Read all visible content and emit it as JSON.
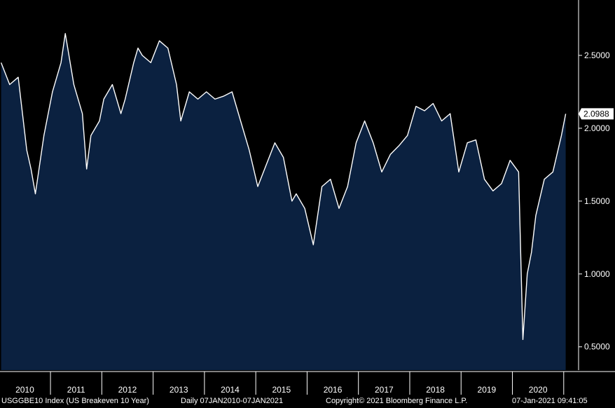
{
  "colors": {
    "background": "#000000",
    "area_fill": "#0b2140",
    "line": "#ffffff",
    "label_box": "#ffffff"
  },
  "chart_data": {
    "type": "area",
    "title": "",
    "xlabel": "",
    "ylabel": "",
    "x_range": [
      "2010-01-07",
      "2021-01-07"
    ],
    "ylim": [
      0.34,
      2.88
    ],
    "grid": false,
    "y_ticks": [
      "2.5000",
      "2.0000",
      "1.5000",
      "1.0000",
      "0.5000"
    ],
    "x_tick_labels": [
      "2010",
      "2011",
      "2012",
      "2013",
      "2014",
      "2015",
      "2016",
      "2017",
      "2018",
      "2019",
      "2020"
    ],
    "last_value": "2.0988",
    "series": [
      {
        "x": [
          "2010-01",
          "2010-03",
          "2010-05",
          "2010-07",
          "2010-08",
          "2010-09",
          "2010-11",
          "2011-01",
          "2011-03",
          "2011-04",
          "2011-06",
          "2011-08",
          "2011-09",
          "2011-10",
          "2011-12",
          "2012-01",
          "2012-03",
          "2012-05",
          "2012-06",
          "2012-08",
          "2012-09",
          "2012-10",
          "2012-12",
          "2013-02",
          "2013-04",
          "2013-06",
          "2013-07",
          "2013-09",
          "2013-11",
          "2014-01",
          "2014-03",
          "2014-05",
          "2014-07",
          "2014-09",
          "2014-11",
          "2015-01",
          "2015-03",
          "2015-05",
          "2015-07",
          "2015-09",
          "2015-10",
          "2015-12",
          "2016-02",
          "2016-04",
          "2016-06",
          "2016-08",
          "2016-10",
          "2016-12",
          "2017-02",
          "2017-04",
          "2017-06",
          "2017-08",
          "2017-10",
          "2017-12",
          "2018-02",
          "2018-04",
          "2018-06",
          "2018-08",
          "2018-10",
          "2018-12",
          "2019-02",
          "2019-04",
          "2019-06",
          "2019-08",
          "2019-10",
          "2019-12",
          "2020-02",
          "2020-03",
          "2020-04",
          "2020-05",
          "2020-06",
          "2020-08",
          "2020-10",
          "2020-12",
          "2021-01"
        ],
        "y": [
          2.45,
          2.3,
          2.35,
          1.85,
          1.72,
          1.55,
          1.95,
          2.25,
          2.45,
          2.65,
          2.3,
          2.1,
          1.72,
          1.95,
          2.05,
          2.2,
          2.3,
          2.1,
          2.2,
          2.45,
          2.55,
          2.5,
          2.45,
          2.6,
          2.55,
          2.3,
          2.05,
          2.25,
          2.2,
          2.25,
          2.2,
          2.22,
          2.25,
          2.05,
          1.85,
          1.6,
          1.75,
          1.9,
          1.8,
          1.5,
          1.55,
          1.45,
          1.2,
          1.6,
          1.65,
          1.45,
          1.6,
          1.9,
          2.05,
          1.9,
          1.7,
          1.82,
          1.88,
          1.95,
          2.15,
          2.12,
          2.17,
          2.05,
          2.1,
          1.7,
          1.9,
          1.92,
          1.65,
          1.57,
          1.62,
          1.78,
          1.7,
          0.55,
          1.0,
          1.15,
          1.4,
          1.65,
          1.7,
          1.95,
          2.0988
        ]
      }
    ]
  },
  "footer": {
    "ticker": "USGGBE10 Index (US Breakeven 10 Year)",
    "range": "Daily 07JAN2010-07JAN2021",
    "copyright": "Copyright© 2021 Bloomberg Finance L.P.",
    "timestamp": "07-Jan-2021 09:41:05"
  }
}
